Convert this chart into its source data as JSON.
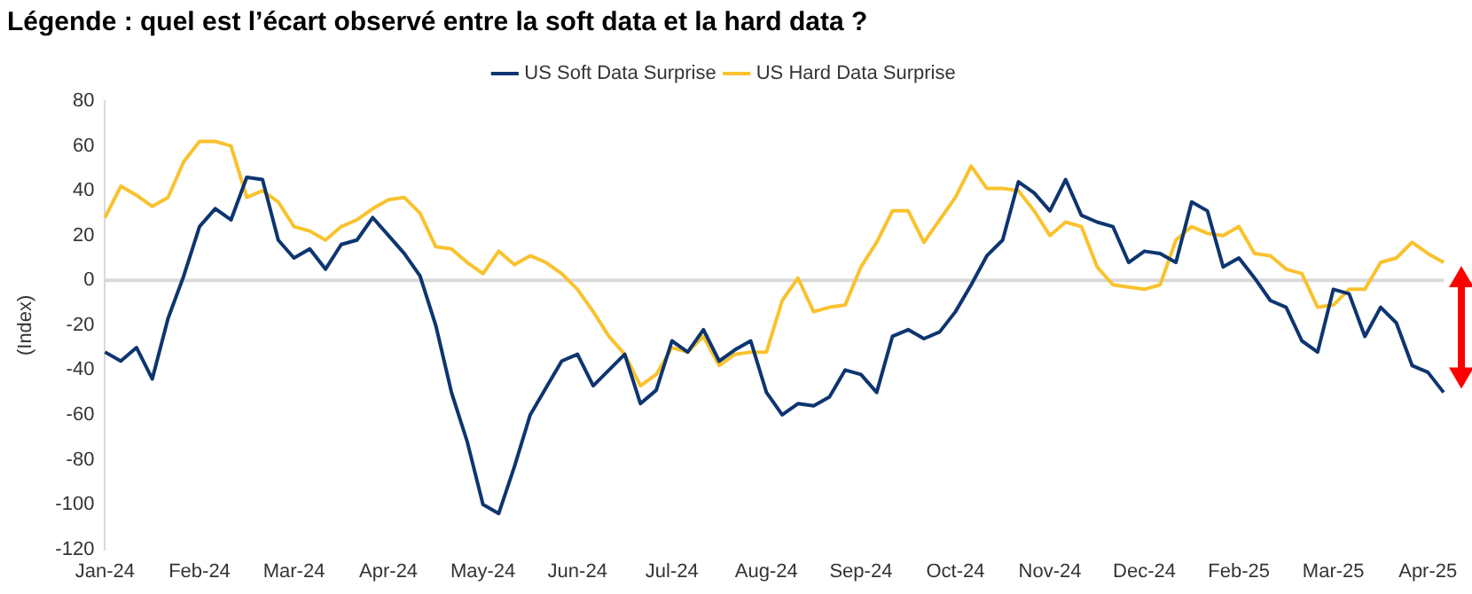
{
  "chart_data": {
    "type": "line",
    "title": "Légende : quel est l’écart observé entre la soft data et la hard data ?",
    "ylabel": "(Index)",
    "categories": [
      "Jan-24",
      null,
      null,
      null,
      null,
      null,
      "Feb-24",
      null,
      null,
      null,
      null,
      null,
      "Mar-24",
      null,
      null,
      null,
      null,
      null,
      "Apr-24",
      null,
      null,
      null,
      null,
      null,
      "May-24",
      null,
      null,
      null,
      null,
      null,
      "Jun-24",
      null,
      null,
      null,
      null,
      null,
      "Jul-24",
      null,
      null,
      null,
      null,
      null,
      "Aug-24",
      null,
      null,
      null,
      null,
      null,
      "Sep-24",
      null,
      null,
      null,
      null,
      null,
      "Oct-24",
      null,
      null,
      null,
      null,
      null,
      "Nov-24",
      null,
      null,
      null,
      null,
      null,
      "Dec-24",
      null,
      null,
      null,
      null,
      null,
      "Feb-25",
      null,
      null,
      null,
      null,
      null,
      "Mar-25",
      null,
      null,
      null,
      null,
      null,
      "Apr-25",
      null
    ],
    "series": [
      {
        "name": "US Soft Data Surprise",
        "color": "#0d3570",
        "values": [
          -32,
          -36,
          -30,
          -44,
          -17,
          2,
          24,
          32,
          27,
          46,
          45,
          18,
          10,
          14,
          5,
          16,
          18,
          28,
          20,
          12,
          2,
          -20,
          -50,
          -72,
          -100,
          -104,
          -83,
          -60,
          -48,
          -36,
          -33,
          -47,
          -40,
          -33,
          -55,
          -49,
          -27,
          -32,
          -22,
          -36,
          -31,
          -27,
          -50,
          -60,
          -55,
          -56,
          -52,
          -40,
          -42,
          -50,
          -25,
          -22,
          -26,
          -23,
          -14,
          -2,
          11,
          18,
          44,
          39,
          31,
          45,
          29,
          26,
          24,
          8,
          13,
          12,
          8,
          35,
          31,
          6,
          10,
          1,
          -9,
          -12,
          -27,
          -32,
          -4,
          -6,
          -25,
          -12,
          -19,
          -38,
          -41,
          -50
        ]
      },
      {
        "name": "US Hard Data Surprise",
        "color": "#f9c22e",
        "values": [
          28,
          42,
          38,
          33,
          37,
          53,
          62,
          62,
          60,
          37,
          40,
          35,
          24,
          22,
          18,
          24,
          27,
          32,
          36,
          37,
          30,
          15,
          14,
          8,
          3,
          13,
          7,
          11,
          8,
          3,
          -4,
          -14,
          -25,
          -33,
          -47,
          -42,
          -30,
          -32,
          -25,
          -38,
          -33,
          -32,
          -32,
          -9,
          1,
          -14,
          -12,
          -11,
          6,
          17,
          31,
          31,
          17,
          27,
          37,
          51,
          41,
          41,
          40,
          31,
          20,
          26,
          24,
          6,
          -2,
          -3,
          -4,
          -2,
          18,
          24,
          21,
          20,
          24,
          12,
          11,
          5,
          3,
          -12,
          -11,
          -4,
          -4,
          8,
          10,
          17,
          12,
          8
        ]
      }
    ],
    "ylim": [
      -120,
      80
    ],
    "yticks": [
      -120,
      -100,
      -80,
      -60,
      -40,
      -20,
      0,
      20,
      40,
      60,
      80
    ],
    "ref_lines": [
      {
        "axis": "y",
        "value": 0,
        "color": "#d9d9d9"
      }
    ],
    "grid": false,
    "legend": "top",
    "marker": "none",
    "line_style": "solid"
  }
}
